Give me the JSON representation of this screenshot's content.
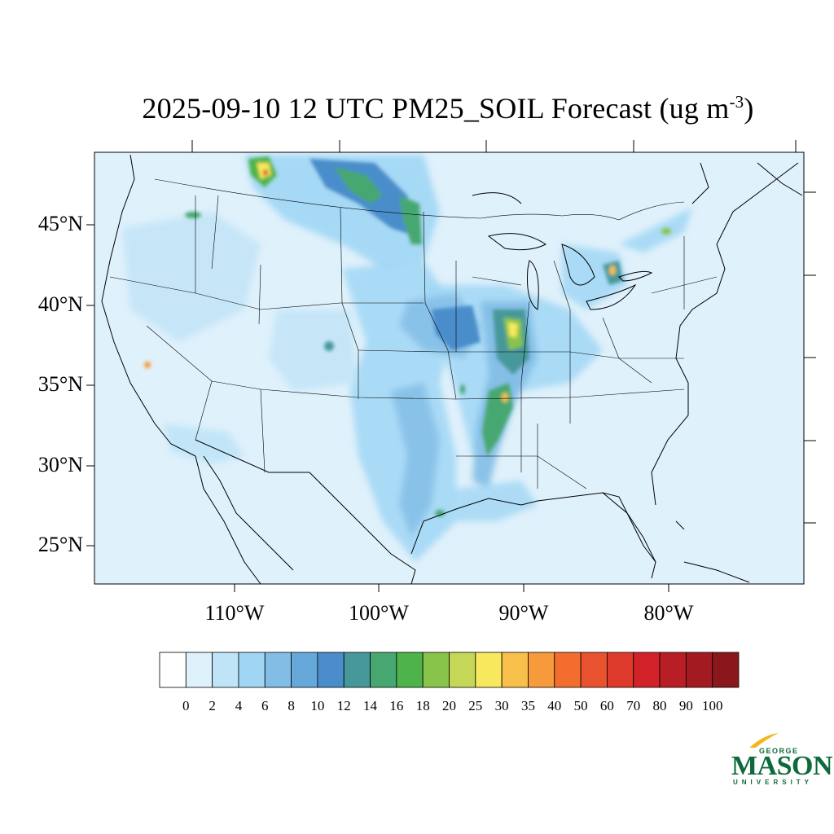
{
  "title": {
    "main": "2025-09-10 12 UTC PM25_SOIL Forecast (ug m",
    "superscript": "-3",
    "close": ")"
  },
  "map": {
    "background_color": "#dff1fb",
    "lat_labels": [
      "45°N",
      "40°N",
      "35°N",
      "30°N",
      "25°N"
    ],
    "lon_labels": [
      "110°W",
      "100°W",
      "90°W",
      "80°W"
    ]
  },
  "colorbar": {
    "labels": [
      "0",
      "2",
      "4",
      "6",
      "8",
      "10",
      "12",
      "14",
      "16",
      "18",
      "20",
      "25",
      "30",
      "35",
      "40",
      "50",
      "60",
      "70",
      "80",
      "90",
      "100"
    ],
    "colors": [
      "#ffffff",
      "#dff1fb",
      "#bfe4f7",
      "#a0d6f4",
      "#82bde6",
      "#67a8da",
      "#4a8dca",
      "#47989a",
      "#47a771",
      "#4db34a",
      "#88c44a",
      "#c4d757",
      "#f8e85d",
      "#f8bf4a",
      "#f79a3c",
      "#f36e2e",
      "#e9522e",
      "#de3a2c",
      "#d22229",
      "#b81e25",
      "#a31b20",
      "#8a171b"
    ]
  },
  "logo": {
    "line1": "GEORGE",
    "line2": "MASON",
    "line3": "UNIVERSITY",
    "color": "#0b6b3a",
    "accent": "#f2b71f"
  }
}
